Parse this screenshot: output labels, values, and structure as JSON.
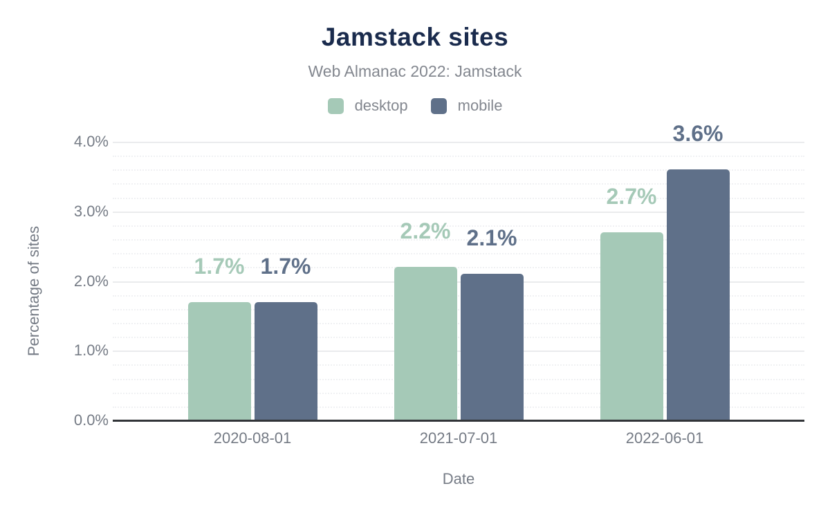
{
  "chart_data": {
    "type": "bar",
    "title": "Jamstack sites",
    "subtitle": "Web Almanac 2022: Jamstack",
    "xlabel": "Date",
    "ylabel": "Percentage of sites",
    "categories": [
      "2020-08-01",
      "2021-07-01",
      "2022-06-01"
    ],
    "series": [
      {
        "name": "desktop",
        "color": "#a5c9b7",
        "values": [
          1.7,
          2.2,
          2.7
        ],
        "labels": [
          "1.7%",
          "2.2%",
          "2.7%"
        ]
      },
      {
        "name": "mobile",
        "color": "#5f7089",
        "values": [
          1.7,
          2.1,
          3.6
        ],
        "labels": [
          "1.7%",
          "2.1%",
          "3.6%"
        ]
      }
    ],
    "ylim": [
      0,
      4
    ],
    "yticks": [
      {
        "value": 0,
        "label": "0.0%"
      },
      {
        "value": 1,
        "label": "1.0%"
      },
      {
        "value": 2,
        "label": "2.0%"
      },
      {
        "value": 3,
        "label": "3.0%"
      },
      {
        "value": 4,
        "label": "4.0%"
      }
    ],
    "y_minor_step": 0.2,
    "grid": "horizontal: major solid, minor dotted",
    "legend_position": "top"
  },
  "colors": {
    "background": "#ffffff",
    "title": "#1a2b4d",
    "subtitle": "#83878f",
    "tick_text": "#757b85",
    "axis_line": "#323438",
    "grid_major": "#eaebed",
    "grid_minor": "#f0f1f3",
    "desktop": "#a5c9b7",
    "mobile": "#5f7089"
  }
}
